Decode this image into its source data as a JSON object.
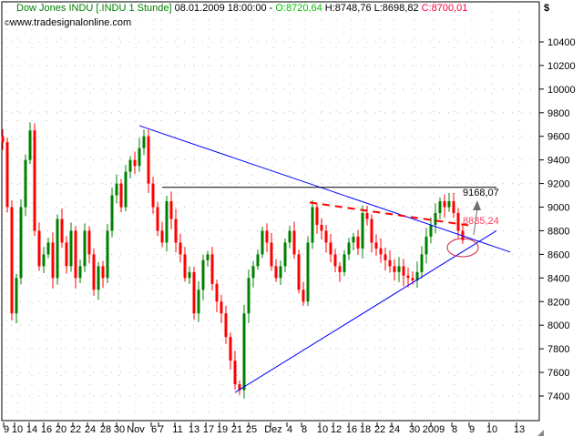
{
  "header": {
    "symbol": "Dow Jones INDU [.INDU  1 Stunde]",
    "datetime": "08.01.2009 18:00:00 -",
    "open": "O:8720,64",
    "high": "H:8748,76",
    "low": "L:8698,82",
    "close": "C:8700,01",
    "website": "www.tradesignalonline.com",
    "currency": "$"
  },
  "colors": {
    "up": "#008000",
    "down": "#ff0000",
    "trendline": "#0000ff",
    "resistance": "#000000",
    "dashed": "#ff0000",
    "open": "#00c000",
    "close": "#ff0040"
  },
  "chart_data": {
    "type": "candlestick",
    "title": "Dow Jones INDU [.INDU  1 Stunde]",
    "ylim": [
      7300,
      10600
    ],
    "yticks": [
      7400,
      7600,
      7800,
      8000,
      8200,
      8400,
      8600,
      8800,
      9000,
      9200,
      9400,
      9600,
      9800,
      10000,
      10200,
      10400
    ],
    "xticklabels": [
      "9",
      "10",
      "14",
      "16",
      "20",
      "22",
      "24",
      "28",
      "30",
      "Nov",
      "6",
      "7",
      "11",
      "13",
      "17",
      "19",
      "21",
      "25",
      "Dez",
      "4",
      "8",
      "10",
      "12",
      "16",
      "18",
      "22",
      "24",
      "30",
      "2009",
      "8",
      "9",
      "10",
      "13"
    ],
    "grid": true,
    "closes": [
      9550,
      9000,
      8100,
      8400,
      9000,
      9400,
      9650,
      8800,
      8500,
      8600,
      8700,
      8400,
      8900,
      8700,
      8500,
      8800,
      8400,
      8500,
      8800,
      8600,
      8300,
      8500,
      8400,
      8800,
      9100,
      9200,
      9000,
      9300,
      9400,
      9350,
      9500,
      9600,
      9200,
      9000,
      8800,
      8700,
      9050,
      8900,
      8700,
      8600,
      8400,
      8450,
      8100,
      8300,
      8550,
      8600,
      8350,
      8200,
      8100,
      7900,
      7700,
      7500,
      7450,
      8100,
      8400,
      8500,
      8600,
      8800,
      8700,
      8500,
      8400,
      8500,
      8700,
      8800,
      8600,
      8300,
      8200,
      8700,
      9000,
      8850,
      8800,
      8700,
      8600,
      8500,
      8450,
      8600,
      8700,
      8750,
      8650,
      8950,
      8900,
      8700,
      8650,
      8600,
      8550,
      8500,
      8450,
      8500,
      8420,
      8400,
      8380,
      8450,
      8600,
      8750,
      8850,
      8950,
      9050,
      9000,
      9050,
      8950,
      8800,
      8720
    ],
    "annotations": {
      "upper_trendline": {
        "from": [
          30,
          9690
        ],
        "to": [
          111.4,
          8620
        ]
      },
      "lower_trendline": {
        "from": [
          51,
          7430
        ],
        "to": [
          108.4,
          8800
        ]
      },
      "resistance": {
        "from": [
          35,
          9168.07
        ],
        "to": [
          108.4,
          9168.07
        ],
        "label": "9168,07"
      },
      "dashed_line": {
        "from": [
          67.4,
          9040
        ],
        "to": [
          103.4,
          8840
        ],
        "label": "8835,24"
      }
    }
  }
}
